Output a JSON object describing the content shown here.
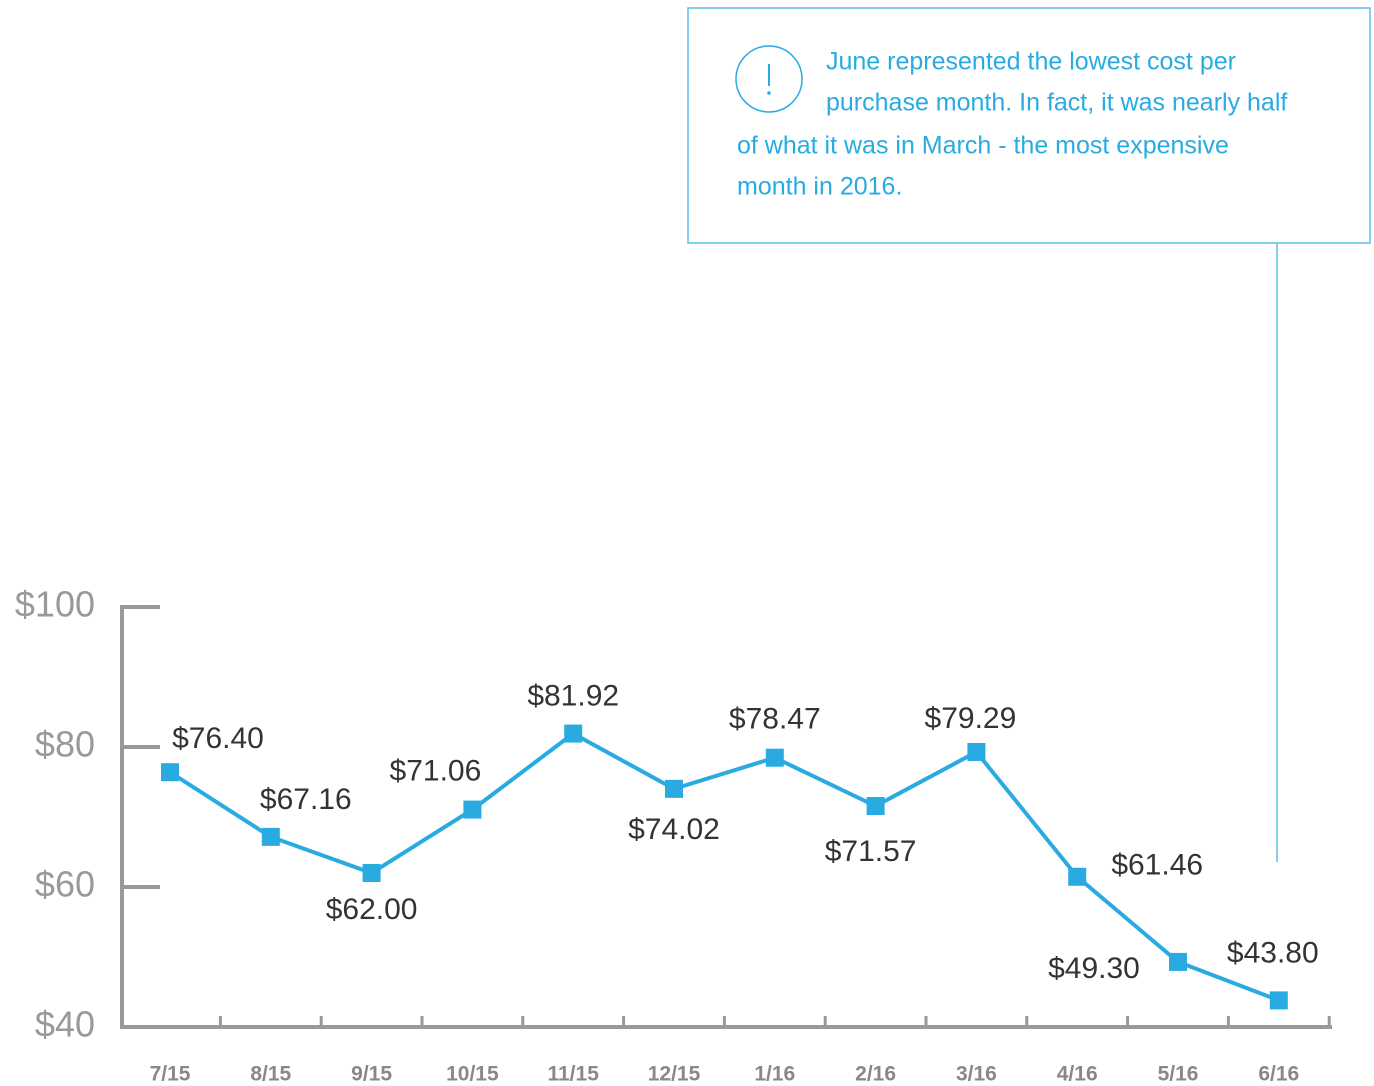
{
  "chart_data": {
    "type": "line",
    "annotation": [
      "June represented the lowest cost per",
      "purchase month. In fact, it was nearly half",
      "of what it was in March - the most expensive",
      "month in 2016."
    ],
    "categories": [
      "7/15",
      "8/15",
      "9/15",
      "10/15",
      "11/15",
      "12/15",
      "1/16",
      "2/16",
      "3/16",
      "4/16",
      "5/16",
      "6/16"
    ],
    "series": [
      {
        "color": "#29abe2",
        "values": [
          76.4,
          67.16,
          62.0,
          71.06,
          81.92,
          74.02,
          78.47,
          71.57,
          79.29,
          61.46,
          49.3,
          43.8
        ],
        "value_labels": [
          "$76.40",
          "$67.16",
          "$62.00",
          "$71.06",
          "$81.92",
          "$74.02",
          "$78.47",
          "$71.57",
          "$79.29",
          "$61.46",
          "$49.30",
          "$43.80"
        ]
      }
    ],
    "ylim": [
      40,
      100
    ],
    "yticks": [
      {
        "value": 40,
        "label": "$40"
      },
      {
        "value": 60,
        "label": "$60"
      },
      {
        "value": 80,
        "label": "$80"
      },
      {
        "value": 100,
        "label": "$100"
      }
    ]
  }
}
